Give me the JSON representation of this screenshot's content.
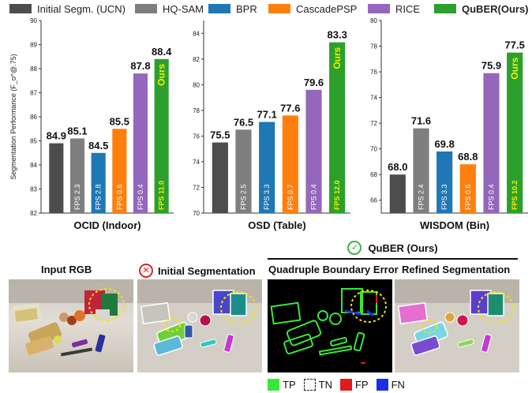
{
  "legend": {
    "items": [
      {
        "label": "Initial Segm. (UCN)",
        "color": "#4d4d4d"
      },
      {
        "label": "HQ-SAM",
        "color": "#7f7f7f"
      },
      {
        "label": "BPR",
        "color": "#1f77b4"
      },
      {
        "label": "CascadePSP",
        "color": "#ff7f0e"
      },
      {
        "label": "RICE",
        "color": "#9467bd"
      },
      {
        "label": "QuBER(Ours)",
        "color": "#2ca02c"
      }
    ]
  },
  "chart_data": [
    {
      "type": "bar",
      "title": "OCID (Indoor)",
      "ylabel": "Segmentation Performance (F_o^@.75)",
      "ylim": [
        82,
        90
      ],
      "yticks": [
        82,
        83,
        84,
        85,
        86,
        87,
        88,
        89,
        90
      ],
      "categories": [
        "Initial Segm. (UCN)",
        "HQ-SAM",
        "BPR",
        "CascadePSP",
        "RICE",
        "QuBER(Ours)"
      ],
      "values": [
        84.9,
        85.1,
        84.5,
        85.5,
        87.8,
        88.4
      ],
      "value_labels": [
        "84.9",
        "85.1",
        "84.5",
        "85.5",
        "87.8",
        "88.4"
      ],
      "fps_labels": [
        "",
        "FPS 2.3",
        "FPS 2.8",
        "FPS 0.6",
        "FPS 0.4",
        "FPS 11.0"
      ],
      "ours_label": "Ours"
    },
    {
      "type": "bar",
      "title": "OSD (Table)",
      "ylim": [
        70,
        85
      ],
      "yticks": [
        70,
        72,
        74,
        76,
        78,
        80,
        82,
        84
      ],
      "categories": [
        "Initial Segm. (UCN)",
        "HQ-SAM",
        "BPR",
        "CascadePSP",
        "RICE",
        "QuBER(Ours)"
      ],
      "values": [
        75.5,
        76.5,
        77.1,
        77.6,
        79.6,
        83.3
      ],
      "value_labels": [
        "75.5",
        "76.5",
        "77.1",
        "77.6",
        "79.6",
        "83.3"
      ],
      "fps_labels": [
        "",
        "FPS 2.5",
        "FPS 3.3",
        "FPS 0.7",
        "FPS 0.4",
        "FPS 12.0"
      ],
      "ours_label": "Ours"
    },
    {
      "type": "bar",
      "title": "WISDOM (Bin)",
      "ylim": [
        65,
        80
      ],
      "yticks": [
        66,
        68,
        70,
        72,
        74,
        76,
        78,
        80
      ],
      "categories": [
        "Initial Segm. (UCN)",
        "HQ-SAM",
        "BPR",
        "CascadePSP",
        "RICE",
        "QuBER(Ours)"
      ],
      "values": [
        68.0,
        71.6,
        69.8,
        68.8,
        75.9,
        77.5
      ],
      "value_labels": [
        "68.0",
        "71.6",
        "69.8",
        "68.8",
        "75.9",
        "77.5"
      ],
      "fps_labels": [
        "",
        "FPS 2.4",
        "FPS 3.3",
        "FPS 0.6",
        "FPS 0.4",
        "FPS 10.2"
      ],
      "ours_label": "Ours"
    }
  ],
  "bottom": {
    "quber_title": "QuBER (Ours)",
    "panels": [
      {
        "title": "Input RGB"
      },
      {
        "title": "Initial Segmentation"
      },
      {
        "title": "Quadruple Boundary Error"
      },
      {
        "title": "Refined Segmentation"
      }
    ],
    "confusion_legend": [
      {
        "label": "TP",
        "color": "#39e639"
      },
      {
        "label": "TN",
        "color": "#ffffff"
      },
      {
        "label": "FP",
        "color": "#e11b1b"
      },
      {
        "label": "FN",
        "color": "#1a2fe6"
      }
    ]
  }
}
